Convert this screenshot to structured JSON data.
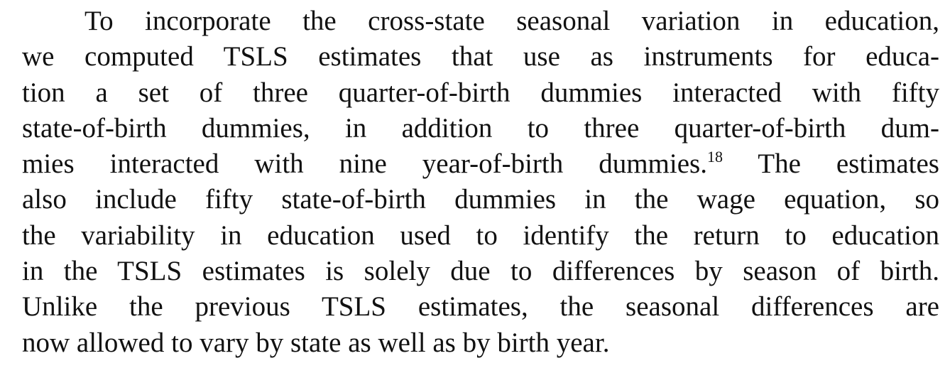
{
  "paragraph": {
    "lines": [
      "To incorporate the cross-state seasonal variation in education,",
      "we computed TSLS estimates that use as instruments for educa-",
      "tion a set of three quarter-of-birth dummies interacted with fifty",
      "state-of-birth dummies, in addition to three quarter-of-birth dum-",
      "mies interacted with nine year-of-birth dummies.",
      "also include fifty state-of-birth dummies in the wage equation, so",
      "the variability in education used to identify the return to education",
      "in the TSLS estimates is solely due to differences by season of birth.",
      "Unlike the previous TSLS estimates, the seasonal differences are",
      "now allowed to vary by state as well as by birth year."
    ],
    "footnote_marker": "18",
    "line5_tail": " The estimates"
  }
}
